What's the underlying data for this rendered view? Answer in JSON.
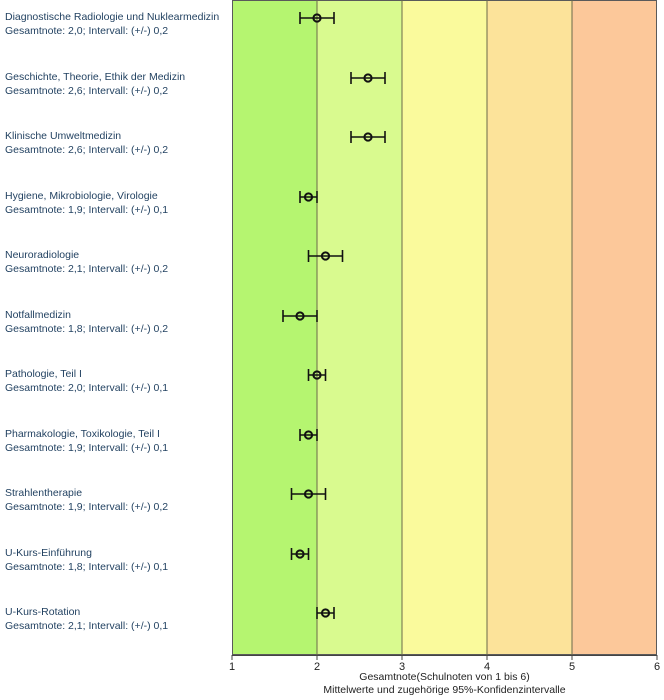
{
  "chart_data": {
    "type": "scatter",
    "x_axis_title": "Gesamtnote(Schulnoten von 1 bis 6)",
    "x_axis_subtitle": "Mittelwerte und zugehörige 95%-Konfidenzintervalle",
    "xlim": [
      1,
      6
    ],
    "ticks": [
      "1",
      "2",
      "3",
      "4",
      "5",
      "6"
    ],
    "grade_bands": [
      {
        "from": 1,
        "to": 2,
        "color": "#b5f570"
      },
      {
        "from": 2,
        "to": 3,
        "color": "#d9fa8f"
      },
      {
        "from": 3,
        "to": 4,
        "color": "#fafa9c"
      },
      {
        "from": 4,
        "to": 5,
        "color": "#fce39a"
      },
      {
        "from": 5,
        "to": 6,
        "color": "#fcc89a"
      }
    ],
    "items": [
      {
        "name": "Diagnostische Radiologie und Nuklearmedizin",
        "detail": "Gesamtnote: 2,0;  Intervall: (+/-) 0,2",
        "mean": 2.0,
        "ci": 0.2
      },
      {
        "name": "Geschichte, Theorie, Ethik der Medizin",
        "detail": "Gesamtnote: 2,6;  Intervall: (+/-) 0,2",
        "mean": 2.6,
        "ci": 0.2
      },
      {
        "name": "Klinische Umweltmedizin",
        "detail": "Gesamtnote: 2,6;  Intervall: (+/-) 0,2",
        "mean": 2.6,
        "ci": 0.2
      },
      {
        "name": "Hygiene, Mikrobiologie, Virologie",
        "detail": "Gesamtnote: 1,9;  Intervall: (+/-) 0,1",
        "mean": 1.9,
        "ci": 0.1
      },
      {
        "name": "Neuroradiologie",
        "detail": "Gesamtnote: 2,1;  Intervall: (+/-) 0,2",
        "mean": 2.1,
        "ci": 0.2
      },
      {
        "name": "Notfallmedizin",
        "detail": "Gesamtnote: 1,8;  Intervall: (+/-) 0,2",
        "mean": 1.8,
        "ci": 0.2
      },
      {
        "name": "Pathologie, Teil I",
        "detail": "Gesamtnote: 2,0;  Intervall: (+/-) 0,1",
        "mean": 2.0,
        "ci": 0.1
      },
      {
        "name": "Pharmakologie, Toxikologie, Teil I",
        "detail": "Gesamtnote: 1,9;  Intervall: (+/-) 0,1",
        "mean": 1.9,
        "ci": 0.1
      },
      {
        "name": "Strahlentherapie",
        "detail": "Gesamtnote: 1,9;  Intervall: (+/-) 0,2",
        "mean": 1.9,
        "ci": 0.2
      },
      {
        "name": "U-Kurs-Einführung",
        "detail": "Gesamtnote: 1,8;  Intervall: (+/-) 0,1",
        "mean": 1.8,
        "ci": 0.1
      },
      {
        "name": "U-Kurs-Rotation",
        "detail": "Gesamtnote: 2,1;  Intervall: (+/-) 0,1",
        "mean": 2.1,
        "ci": 0.1
      }
    ]
  }
}
